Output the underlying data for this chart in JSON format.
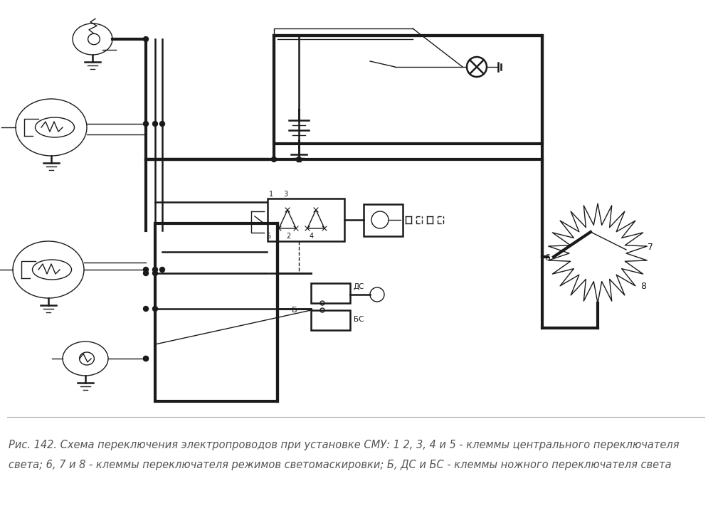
{
  "bg_color": "#ffffff",
  "line_color": "#1a1a1a",
  "caption_line1": "Рис. 142. Схема переключения электропроводов при установке СМУ: 1 2, 3, 4 и 5 - клеммы центрального переключателя",
  "caption_line2": "света; 6, 7 и 8 - клеммы переключателя режимов светомаскировки; Б, ДС и БС - клеммы ножного переключателя света",
  "caption_fontsize": 10.5,
  "caption_color": "#555555",
  "figsize": [
    10.02,
    7.14
  ],
  "dpi": 100,
  "lw_thick": 3.0,
  "lw_med": 1.8,
  "lw_thin": 1.0
}
